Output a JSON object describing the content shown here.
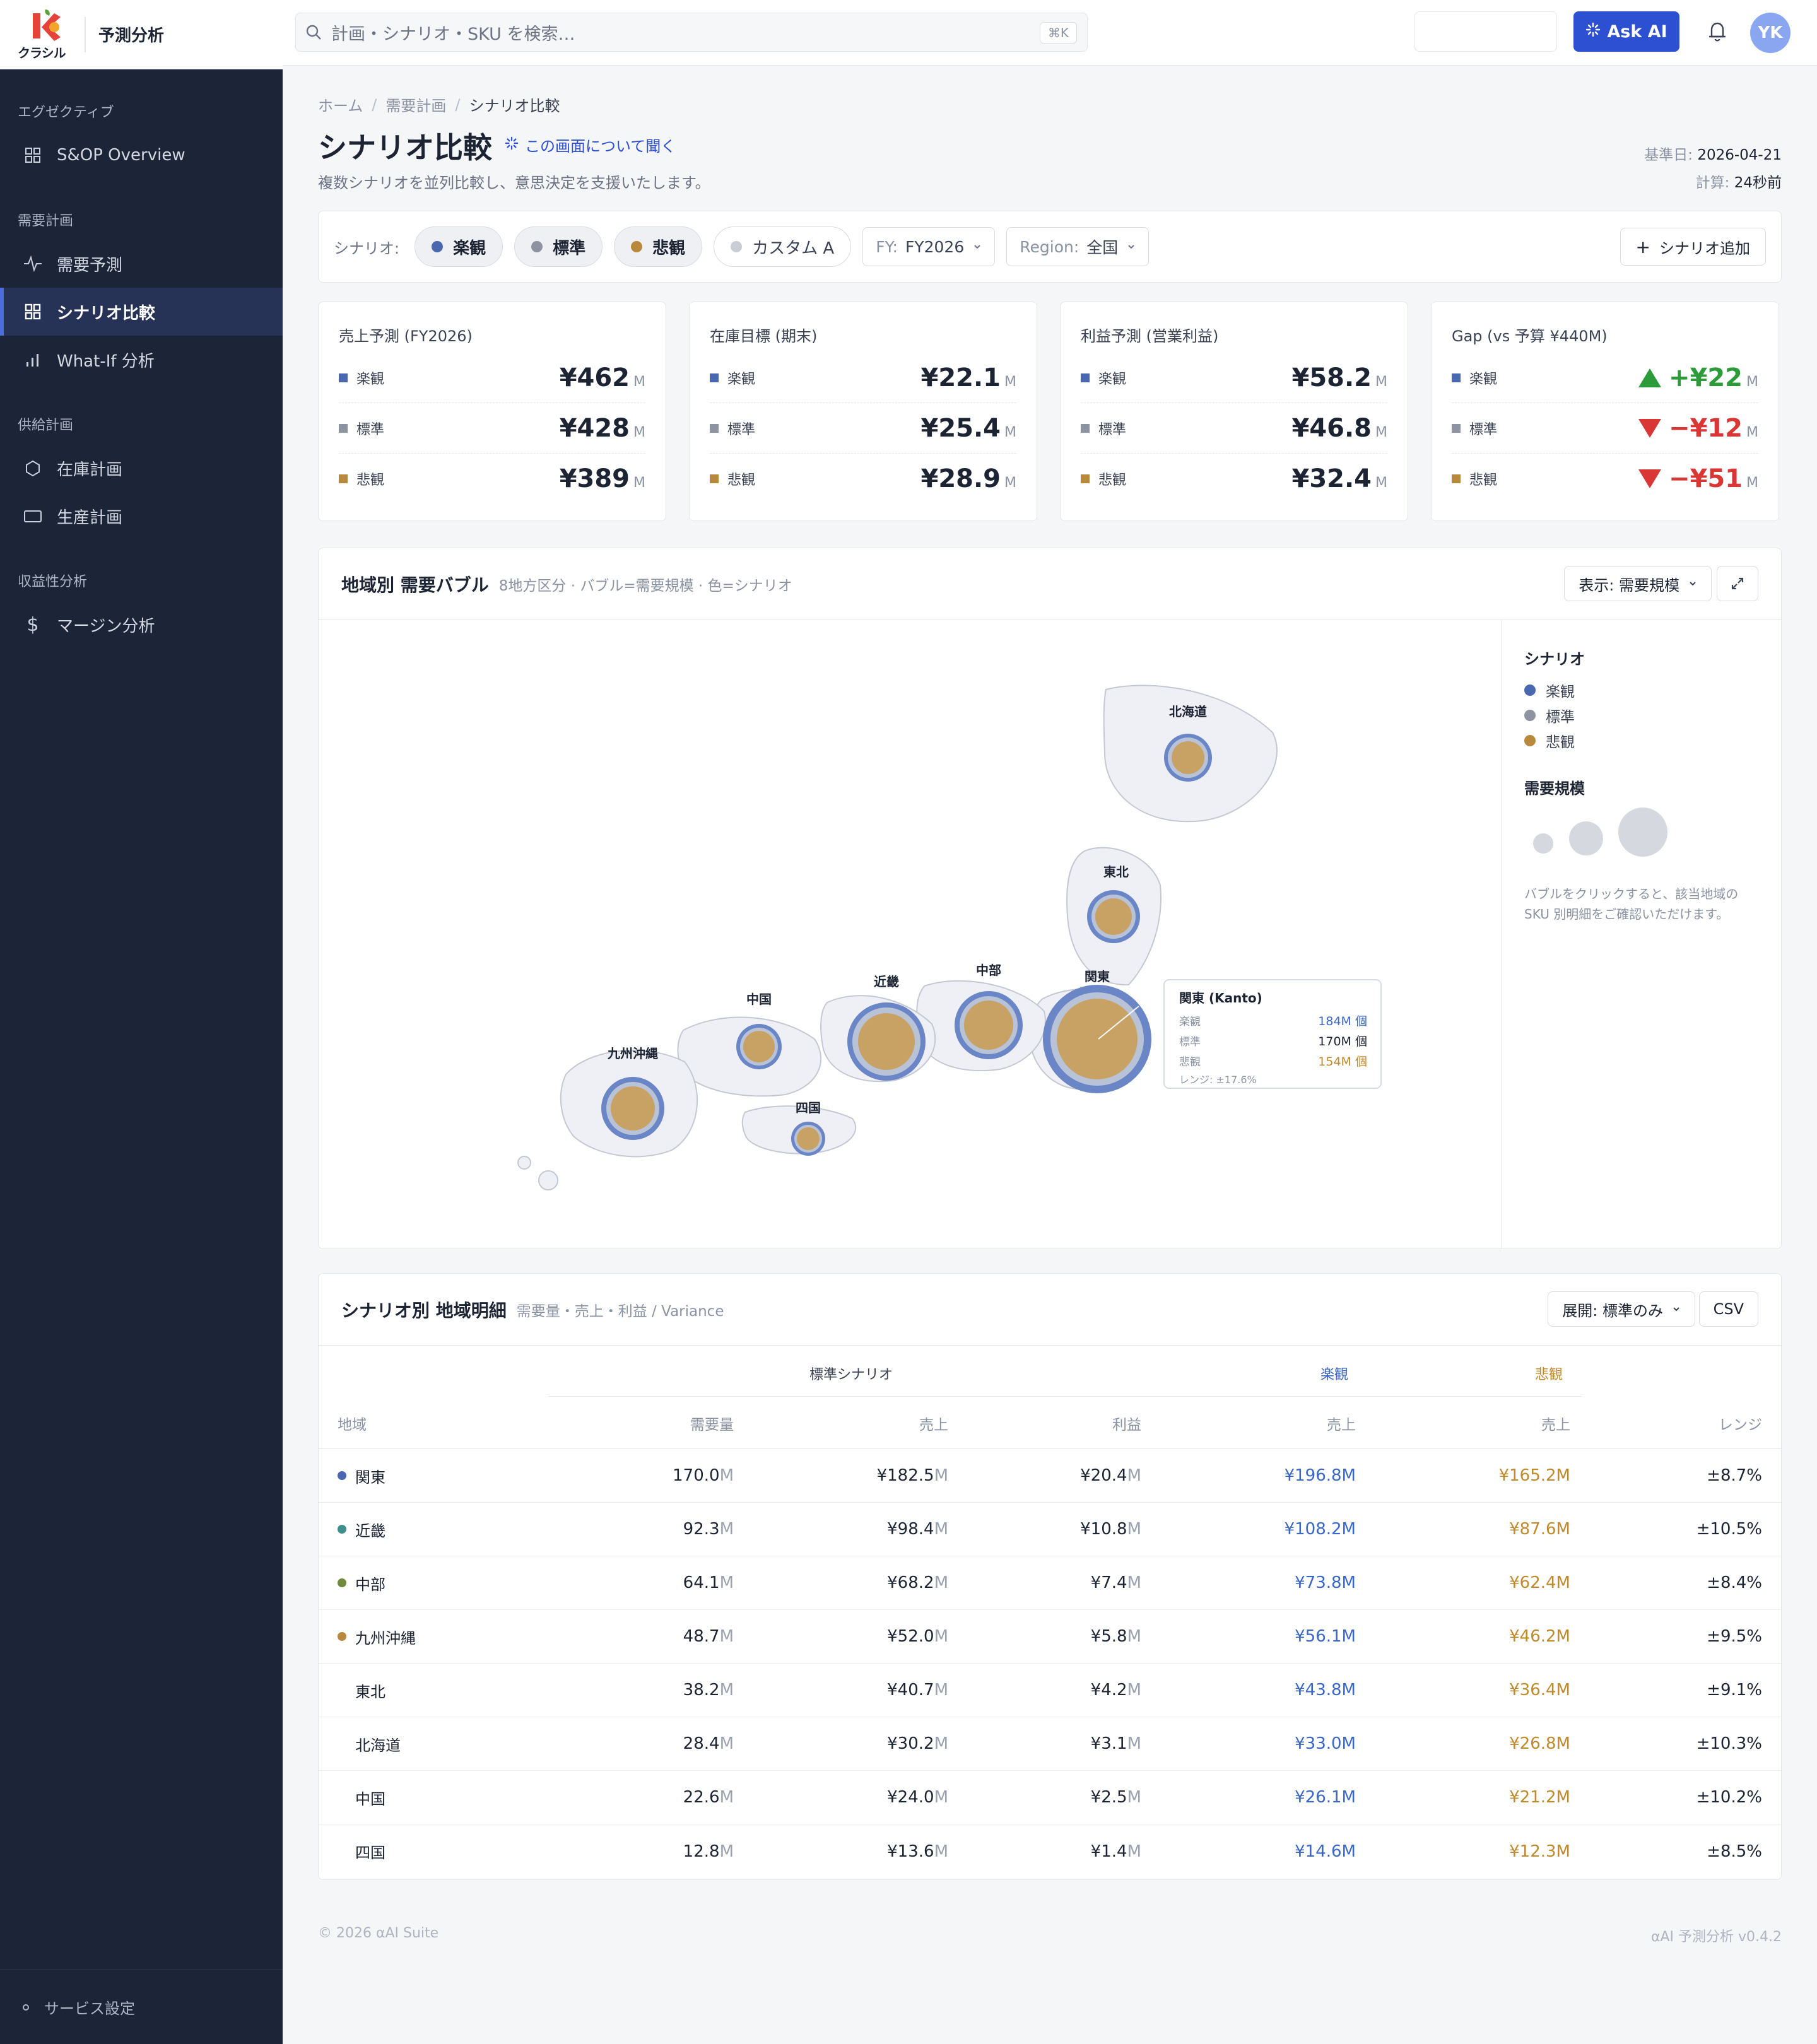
{
  "app": {
    "logo_text": "クラシル",
    "title": "予測分析"
  },
  "sidebar": {
    "sections": [
      {
        "heading": "エグゼクティブ",
        "items": [
          {
            "label": "S&OP Overview",
            "icon": "grid-icon"
          }
        ]
      },
      {
        "heading": "需要計画",
        "items": [
          {
            "label": "需要予測",
            "icon": "pulse-icon"
          },
          {
            "label": "シナリオ比較",
            "icon": "grid-icon",
            "active": true
          },
          {
            "label": "What-If 分析",
            "icon": "bar-chart-icon"
          }
        ]
      },
      {
        "heading": "供給計画",
        "items": [
          {
            "label": "在庫計画",
            "icon": "hexagon-icon"
          },
          {
            "label": "生産計画",
            "icon": "rectangle-icon"
          }
        ]
      },
      {
        "heading": "収益性分析",
        "items": [
          {
            "label": "マージン分析",
            "icon": "dollar-icon"
          }
        ]
      }
    ],
    "footer": "サービス設定"
  },
  "topbar": {
    "search_placeholder": "計画・シナリオ・SKU を検索…",
    "shortcut": "⌘K",
    "ask_ai": "Ask AI",
    "avatar": "YK"
  },
  "breadcrumb": [
    "ホーム",
    "需要計画",
    "シナリオ比較"
  ],
  "header": {
    "title": "シナリオ比較",
    "ask_link": "この画面について聞く",
    "subtitle": "複数シナリオを並列比較し、意思決定を支援いたします。",
    "base_date_label": "基準日:",
    "base_date": "2026-04-21",
    "calc_label": "計算:",
    "calc_value": "24秒前"
  },
  "filters": {
    "label": "シナリオ:",
    "chips": [
      {
        "label": "楽観",
        "color": "#4a68b0",
        "on": true
      },
      {
        "label": "標準",
        "color": "#8d93a0",
        "on": true
      },
      {
        "label": "悲観",
        "color": "#b8893c",
        "on": true
      },
      {
        "label": "カスタム A",
        "color": "#c9cdd6",
        "on": false
      }
    ],
    "fy_label": "FY:",
    "fy_value": "FY2026",
    "region_label": "Region:",
    "region_value": "全国",
    "add_button": "シナリオ追加"
  },
  "scenario_colors": {
    "楽観": "#4a68b0",
    "標準": "#8d93a0",
    "悲観": "#b8893c"
  },
  "kpis": [
    {
      "title": "売上予測 (FY2026)",
      "rows": [
        {
          "label": "楽観",
          "value": "¥462",
          "unit": "M"
        },
        {
          "label": "標準",
          "value": "¥428",
          "unit": "M"
        },
        {
          "label": "悲観",
          "value": "¥389",
          "unit": "M"
        }
      ]
    },
    {
      "title": "在庫目標 (期末)",
      "rows": [
        {
          "label": "楽観",
          "value": "¥22.1",
          "unit": "M"
        },
        {
          "label": "標準",
          "value": "¥25.4",
          "unit": "M"
        },
        {
          "label": "悲観",
          "value": "¥28.9",
          "unit": "M"
        }
      ]
    },
    {
      "title": "利益予測 (営業利益)",
      "rows": [
        {
          "label": "楽観",
          "value": "¥58.2",
          "unit": "M"
        },
        {
          "label": "標準",
          "value": "¥46.8",
          "unit": "M"
        },
        {
          "label": "悲観",
          "value": "¥32.4",
          "unit": "M"
        }
      ]
    },
    {
      "title": "Gap (vs 予算 ¥440M)",
      "rows": [
        {
          "label": "楽観",
          "value": "+¥22",
          "unit": "M",
          "trend": "up"
        },
        {
          "label": "標準",
          "value": "−¥12",
          "unit": "M",
          "trend": "down"
        },
        {
          "label": "悲観",
          "value": "−¥51",
          "unit": "M",
          "trend": "down"
        }
      ]
    }
  ],
  "bubble": {
    "title": "地域別 需要バブル",
    "subtitle": "8地方区分 · バブル=需要規模 · 色=シナリオ",
    "view_select": "表示: 需要規模",
    "regions": [
      {
        "name": "北海道"
      },
      {
        "name": "東北"
      },
      {
        "name": "関東"
      },
      {
        "name": "中部"
      },
      {
        "name": "近畿"
      },
      {
        "name": "中国"
      },
      {
        "name": "四国"
      },
      {
        "name": "九州沖縄"
      }
    ],
    "tooltip": {
      "title": "関東 (Kanto)",
      "rows": [
        {
          "label": "楽観",
          "value": "184M 個",
          "tone": "blue"
        },
        {
          "label": "標準",
          "value": "170M 個",
          "tone": "dark"
        },
        {
          "label": "悲観",
          "value": "154M 個",
          "tone": "gold"
        }
      ],
      "range": "レンジ: ±17.6%"
    },
    "legend": {
      "scenario_title": "シナリオ",
      "scenarios": [
        "楽観",
        "標準",
        "悲観"
      ],
      "size_title": "需要規模",
      "note": "バブルをクリックすると、該当地域の SKU 別明細をご確認いただけます。"
    }
  },
  "table": {
    "title": "シナリオ別 地域明細",
    "subtitle": "需要量・売上・利益 / Variance",
    "expand_select": "展開: 標準のみ",
    "csv": "CSV",
    "group_headers": {
      "standard": "標準シナリオ",
      "optimistic": "楽観",
      "pessimistic": "悲観"
    },
    "columns": [
      "地域",
      "需要量",
      "売上",
      "利益",
      "売上",
      "売上",
      "レンジ"
    ],
    "rows": [
      {
        "region": "関東",
        "dot": "#4a68b0",
        "demand": "170.0",
        "sales": "¥182.5",
        "profit": "¥20.4",
        "opt": "¥196.8M",
        "pes": "¥165.2M",
        "range": "±8.7%"
      },
      {
        "region": "近畿",
        "dot": "#3f8f8a",
        "demand": "92.3",
        "sales": "¥98.4",
        "profit": "¥10.8",
        "opt": "¥108.2M",
        "pes": "¥87.6M",
        "range": "±10.5%"
      },
      {
        "region": "中部",
        "dot": "#6f8a3d",
        "demand": "64.1",
        "sales": "¥68.2",
        "profit": "¥7.4",
        "opt": "¥73.8M",
        "pes": "¥62.4M",
        "range": "±8.4%"
      },
      {
        "region": "九州沖縄",
        "dot": "#b8893c",
        "demand": "48.7",
        "sales": "¥52.0",
        "profit": "¥5.8",
        "opt": "¥56.1M",
        "pes": "¥46.2M",
        "range": "±9.5%"
      },
      {
        "region": "東北",
        "dot": "",
        "demand": "38.2",
        "sales": "¥40.7",
        "profit": "¥4.2",
        "opt": "¥43.8M",
        "pes": "¥36.4M",
        "range": "±9.1%"
      },
      {
        "region": "北海道",
        "dot": "",
        "demand": "28.4",
        "sales": "¥30.2",
        "profit": "¥3.1",
        "opt": "¥33.0M",
        "pes": "¥26.8M",
        "range": "±10.3%"
      },
      {
        "region": "中国",
        "dot": "",
        "demand": "22.6",
        "sales": "¥24.0",
        "profit": "¥2.5",
        "opt": "¥26.1M",
        "pes": "¥21.2M",
        "range": "±10.2%"
      },
      {
        "region": "四国",
        "dot": "",
        "demand": "12.8",
        "sales": "¥13.6",
        "profit": "¥1.4",
        "opt": "¥14.6M",
        "pes": "¥12.3M",
        "range": "±8.5%"
      }
    ],
    "unit": "M"
  },
  "footer": {
    "copyright": "© 2026 αAI Suite",
    "version": "αAI 予測分析 v0.4.2"
  }
}
